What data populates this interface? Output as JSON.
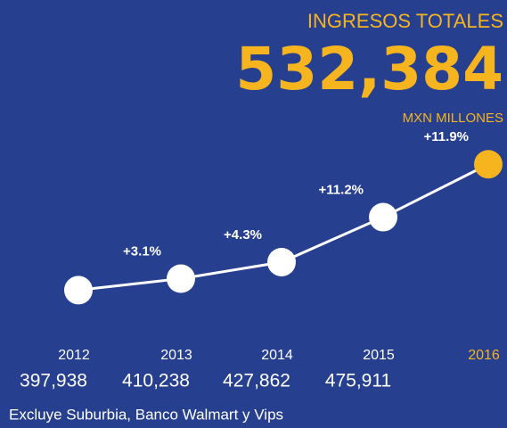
{
  "chart_data": {
    "type": "line",
    "title": "INGRESOS TOTALES",
    "subtitle": "MXN MILLONES",
    "categories": [
      "2012",
      "2013",
      "2014",
      "2015",
      "2016"
    ],
    "values": [
      397938,
      410238,
      427862,
      475911,
      532384
    ],
    "value_labels": [
      "397,938",
      "410,238",
      "427,862",
      "475,911",
      "532,384"
    ],
    "annotations": [
      "+3.1%",
      "+4.3%",
      "+11.2%",
      "+11.9%"
    ],
    "line_color": "#ffffff",
    "point_colors": [
      "#ffffff",
      "#ffffff",
      "#ffffff",
      "#ffffff",
      "#f6b41f"
    ],
    "ylim": [
      365000,
      565000
    ],
    "note": "Excluye Suburbia, Banco Walmart y Vips"
  }
}
